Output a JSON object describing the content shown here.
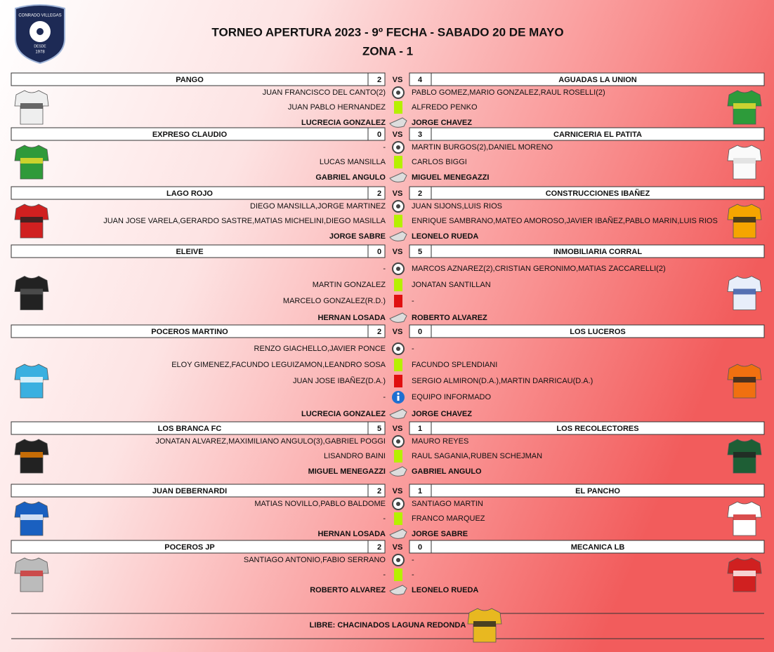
{
  "header": {
    "logo": {
      "name": "CONRADO VILLEGAS",
      "since": "DESDE",
      "year": "1978"
    },
    "title": "TORNEO APERTURA 2023 - 9º FECHA - SABADO 20 DE MAYO",
    "subtitle": "ZONA - 1"
  },
  "matches": [
    {
      "home": "PANGO",
      "home_score": 2,
      "vs": "VS",
      "away_score": 4,
      "away": "AGUADAS LA UNION",
      "rows": [
        {
          "kind": "goals",
          "left": "JUAN FRANCISCO DEL CANTO(2)",
          "right": "PABLO GOMEZ,MARIO GONZALEZ,RAUL ROSELLI(2)"
        },
        {
          "kind": "yellow",
          "left": "JUAN PABLO HERNANDEZ",
          "right": "ALFREDO PENKO"
        }
      ],
      "referee": {
        "left": "LUCRECIA GONZALEZ",
        "right": "JORGE CHAVEZ"
      }
    },
    {
      "home": "EXPRESO CLAUDIO",
      "home_score": 0,
      "vs": "VS",
      "away_score": 3,
      "away": "CARNICERIA EL PATITA",
      "rows": [
        {
          "kind": "goals",
          "left": "-",
          "right": "MARTIN BURGOS(2),DANIEL MORENO"
        },
        {
          "kind": "yellow",
          "left": "LUCAS MANSILLA",
          "right": "CARLOS BIGGI"
        }
      ],
      "referee": {
        "left": "GABRIEL ANGULO",
        "right": "MIGUEL MENEGAZZI"
      }
    },
    {
      "home": "LAGO ROJO",
      "home_score": 2,
      "vs": "VS",
      "away_score": 2,
      "away": "CONSTRUCCIONES IBAÑEZ",
      "rows": [
        {
          "kind": "goals",
          "left": "DIEGO MANSILLA,JORGE MARTINEZ",
          "right": "JUAN SIJONS,LUIS RIOS"
        },
        {
          "kind": "yellow",
          "left": "JUAN JOSE VARELA,GERARDO SASTRE,MATIAS MICHELINI,DIEGO MASILLA",
          "right": "ENRIQUE SAMBRANO,MATEO AMOROSO,JAVIER IBAÑEZ,PABLO MARIN,LUIS RIOS"
        }
      ],
      "referee": {
        "left": "JORGE SABRE",
        "right": "LEONELO RUEDA"
      }
    },
    {
      "home": "ELEIVE",
      "home_score": 0,
      "vs": "VS",
      "away_score": 5,
      "away": "INMOBILIARIA CORRAL",
      "rows": [
        {
          "kind": "goals",
          "left": "-",
          "right": "MARCOS AZNAREZ(2),CRISTIAN GERONIMO,MATIAS ZACCARELLI(2)"
        },
        {
          "kind": "yellow",
          "left": "MARTIN GONZALEZ",
          "right": "JONATAN SANTILLAN"
        },
        {
          "kind": "red",
          "left": "MARCELO GONZALEZ(R.D.)",
          "right": "-"
        }
      ],
      "referee": {
        "left": "HERNAN LOSADA",
        "right": "ROBERTO ALVAREZ"
      }
    },
    {
      "home": "POCEROS MARTINO",
      "home_score": 2,
      "vs": "VS",
      "away_score": 0,
      "away": "LOS LUCEROS",
      "rows": [
        {
          "kind": "goals",
          "left": "RENZO GIACHELLO,JAVIER PONCE",
          "right": "-"
        },
        {
          "kind": "yellow",
          "left": "ELOY GIMENEZ,FACUNDO LEGUIZAMON,LEANDRO SOSA",
          "right": "FACUNDO SPLENDIANI"
        },
        {
          "kind": "red",
          "left": "JUAN JOSE IBAÑEZ(D.A.)",
          "right": "SERGIO ALMIRON(D.A.),MARTIN DARRICAU(D.A.)"
        },
        {
          "kind": "info",
          "left": "-",
          "right": "EQUIPO INFORMADO"
        }
      ],
      "referee": {
        "left": "LUCRECIA GONZALEZ",
        "right": "JORGE CHAVEZ"
      }
    },
    {
      "home": "LOS BRANCA FC",
      "home_score": 5,
      "vs": "VS",
      "away_score": 1,
      "away": "LOS RECOLECTORES",
      "rows": [
        {
          "kind": "goals",
          "left": "JONATAN ALVAREZ,MAXIMILIANO ANGULO(3),GABRIEL POGGI",
          "right": "MAURO REYES"
        },
        {
          "kind": "yellow",
          "left": "LISANDRO BAINI",
          "right": "RAUL SAGANIA,RUBEN SCHEJMAN"
        }
      ],
      "referee": {
        "left": "MIGUEL MENEGAZZI",
        "right": "GABRIEL ANGULO"
      }
    },
    {
      "home": "JUAN DEBERNARDI",
      "home_score": 2,
      "vs": "VS",
      "away_score": 1,
      "away": "EL PANCHO",
      "rows": [
        {
          "kind": "goals",
          "left": "MATIAS NOVILLO,PABLO BALDOME",
          "right": "SANTIAGO MARTIN"
        },
        {
          "kind": "yellow",
          "left": "-",
          "right": "FRANCO MARQUEZ"
        }
      ],
      "referee": {
        "left": "HERNAN LOSADA",
        "right": "JORGE SABRE"
      }
    },
    {
      "home": "POCEROS JP",
      "home_score": 2,
      "vs": "VS",
      "away_score": 0,
      "away": "MECANICA LB",
      "rows": [
        {
          "kind": "goals",
          "left": "SANTIAGO ANTONIO,FABIO SERRANO",
          "right": "-"
        },
        {
          "kind": "yellow",
          "left": "-",
          "right": "-"
        }
      ],
      "referee": {
        "left": "ROBERTO ALVAREZ",
        "right": "LEONELO RUEDA"
      }
    }
  ],
  "footer": {
    "bye": "LIBRE: CHACINADOS LAGUNA REDONDA"
  }
}
